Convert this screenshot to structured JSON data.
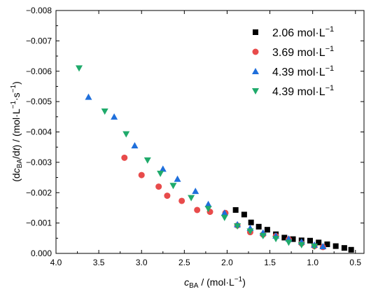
{
  "chart_data": {
    "type": "scatter",
    "xlabel": {
      "pre": "",
      "italic": "c",
      "sub": "BA",
      "post": " / (mol·L",
      "sup": "−1",
      "end": ")"
    },
    "ylabel": {
      "pre": "(d",
      "italic": "c",
      "sub": "BA",
      "mid": "/d",
      "italic2": "t",
      "post": ") / (mol·L",
      "sup1": "−1",
      "dot": "·s",
      "sup2": "−1",
      "end": ")"
    },
    "xlim": [
      4.0,
      0.4
    ],
    "ylim": [
      0,
      -0.008
    ],
    "x_reversed": true,
    "x_ticks": [
      "4.0",
      "3.5",
      "3.0",
      "2.5",
      "2.0",
      "1.5",
      "1.0",
      "0.5"
    ],
    "x_tick_values": [
      4.0,
      3.5,
      3.0,
      2.5,
      2.0,
      1.5,
      1.0,
      0.5
    ],
    "y_ticks": [
      "0.000",
      "−0.001",
      "−0.002",
      "−0.003",
      "−0.004",
      "−0.005",
      "−0.006",
      "−0.007",
      "−0.008"
    ],
    "y_tick_values": [
      0,
      -0.001,
      -0.002,
      -0.003,
      -0.004,
      -0.005,
      -0.006,
      -0.007,
      -0.008
    ],
    "grid": false,
    "legend_placement": "top-right",
    "series": [
      {
        "name": "2.06 mol·L",
        "name_sup": "−1",
        "marker": "square",
        "color": "#000000",
        "x": [
          1.9,
          1.8,
          1.72,
          1.63,
          1.53,
          1.43,
          1.33,
          1.23,
          1.13,
          1.03,
          0.93,
          0.83,
          0.73,
          0.63,
          0.55
        ],
        "y": [
          -0.00143,
          -0.00128,
          -0.00102,
          -0.00088,
          -0.00078,
          -0.00063,
          -0.00052,
          -0.00047,
          -0.00043,
          -0.00042,
          -0.00036,
          -0.0003,
          -0.00024,
          -0.00018,
          -0.00012
        ]
      },
      {
        "name": "3.69 mol·L",
        "name_sup": "−1",
        "marker": "circle",
        "color": "#e84b4b",
        "x": [
          3.2,
          3.0,
          2.8,
          2.7,
          2.53,
          2.35,
          2.2,
          2.02,
          1.88,
          1.73,
          1.58,
          1.43,
          1.28,
          1.13,
          0.98,
          0.88
        ],
        "y": [
          -0.00315,
          -0.00258,
          -0.0022,
          -0.0019,
          -0.00173,
          -0.00143,
          -0.00137,
          -0.00133,
          -0.00092,
          -0.0007,
          -0.00062,
          -0.00057,
          -0.00046,
          -0.00033,
          -0.00024,
          -0.00021
        ]
      },
      {
        "name": "4.39 mol·L",
        "name_sup": "−1",
        "marker": "triangle-up",
        "color": "#1f6fdb",
        "x": [
          3.62,
          3.32,
          3.08,
          2.75,
          2.58,
          2.37,
          2.22,
          2.03,
          1.88,
          1.73,
          1.58,
          1.43,
          1.28,
          1.13,
          0.98,
          0.88
        ],
        "y": [
          -0.00515,
          -0.0045,
          -0.00355,
          -0.00278,
          -0.00245,
          -0.00205,
          -0.00162,
          -0.00133,
          -0.00095,
          -0.00083,
          -0.00068,
          -0.00058,
          -0.00048,
          -0.00038,
          -0.00028,
          -0.00023
        ]
      },
      {
        "name": "4.39 mol·L",
        "name_sup": "−1",
        "marker": "triangle-down",
        "color": "#1faa6b",
        "x": [
          3.73,
          3.43,
          3.18,
          2.93,
          2.78,
          2.63,
          2.42,
          2.22,
          2.03,
          1.88,
          1.73,
          1.58,
          1.43,
          1.28,
          1.13,
          0.98
        ],
        "y": [
          -0.0061,
          -0.00468,
          -0.00393,
          -0.00307,
          -0.00263,
          -0.00223,
          -0.00183,
          -0.00147,
          -0.00118,
          -0.0009,
          -0.00073,
          -0.00058,
          -0.00048,
          -0.00036,
          -0.00028,
          -0.00023
        ]
      }
    ]
  }
}
